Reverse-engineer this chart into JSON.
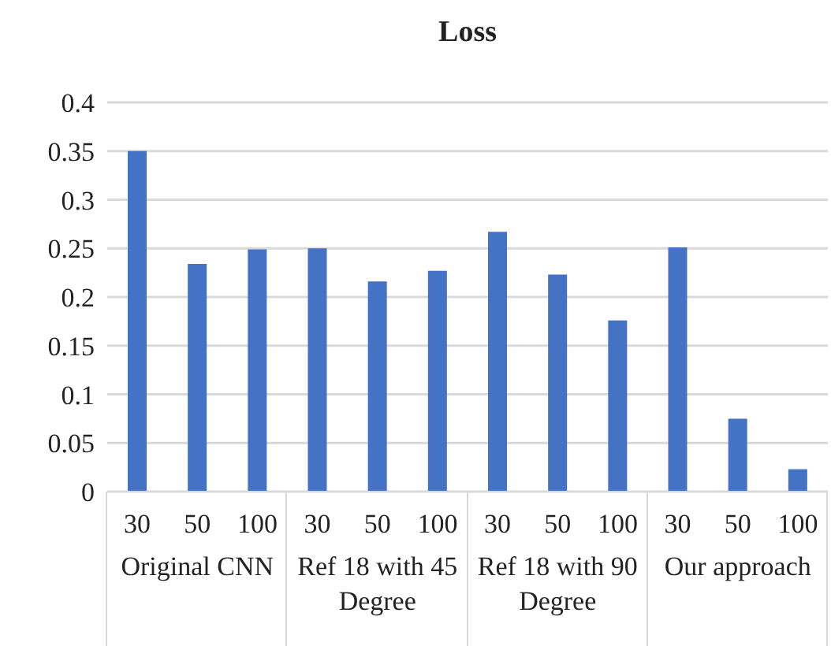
{
  "chart_data": {
    "type": "bar",
    "title": "Loss",
    "categories": [
      "30",
      "50",
      "100",
      "30",
      "50",
      "100",
      "30",
      "50",
      "100",
      "30",
      "50",
      "100"
    ],
    "values": [
      0.35,
      0.234,
      0.249,
      0.25,
      0.216,
      0.227,
      0.267,
      0.223,
      0.176,
      0.251,
      0.075,
      0.023
    ],
    "color": "#4472c4",
    "ylim": [
      0,
      0.4
    ],
    "yticks": [
      0,
      0.05,
      0.1,
      0.15,
      0.2,
      0.25,
      0.3,
      0.35,
      0.4
    ],
    "grid": "y",
    "annotations": [
      "Original CNN",
      "Ref 18 with 45 Degree",
      "Ref 18 with 90 Degree",
      "Our approach"
    ]
  }
}
